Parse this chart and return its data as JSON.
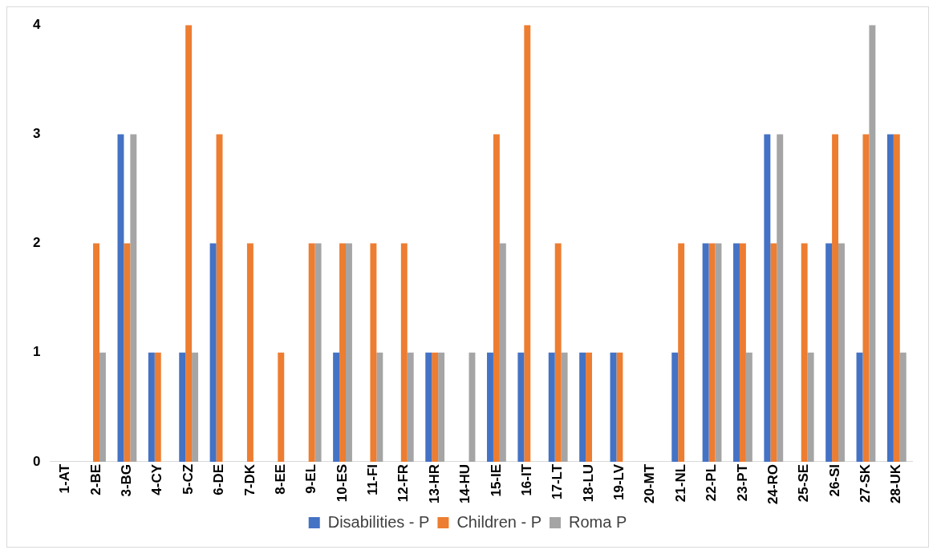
{
  "chart_data": {
    "type": "bar",
    "categories": [
      "1-AT",
      "2-BE",
      "3-BG",
      "4-CY",
      "5-CZ",
      "6-DE",
      "7-DK",
      "8-EE",
      "9-EL",
      "10-ES",
      "11-FI",
      "12-FR",
      "13-HR",
      "14-HU",
      "15-IE",
      "16-IT",
      "17-LT",
      "18-LU",
      "19-LV",
      "20-MT",
      "21-NL",
      "22-PL",
      "23-PT",
      "24-RO",
      "25-SE",
      "26-SI",
      "27-SK",
      "28-UK"
    ],
    "series": [
      {
        "name": "Disabilities - P",
        "color": "#4472c4",
        "values": [
          0,
          0,
          3,
          1,
          1,
          2,
          0,
          0,
          0,
          1,
          0,
          0,
          1,
          0,
          1,
          1,
          1,
          1,
          1,
          0,
          1,
          2,
          2,
          3,
          0,
          2,
          1,
          3
        ]
      },
      {
        "name": "Children - P",
        "color": "#ed7d31",
        "values": [
          0,
          2,
          2,
          1,
          4,
          3,
          2,
          1,
          2,
          2,
          2,
          2,
          1,
          0,
          3,
          4,
          2,
          1,
          1,
          0,
          2,
          2,
          2,
          2,
          2,
          3,
          3,
          3
        ]
      },
      {
        "name": "Roma P",
        "color": "#a5a5a5",
        "values": [
          0,
          1,
          3,
          0,
          1,
          0,
          0,
          0,
          2,
          2,
          1,
          1,
          1,
          1,
          2,
          0,
          1,
          0,
          0,
          0,
          0,
          2,
          1,
          3,
          1,
          2,
          4,
          1
        ]
      }
    ],
    "ylim": [
      0,
      4
    ],
    "yticks": [
      0,
      1,
      2,
      3,
      4
    ],
    "grid": false,
    "legend": "bottom"
  }
}
